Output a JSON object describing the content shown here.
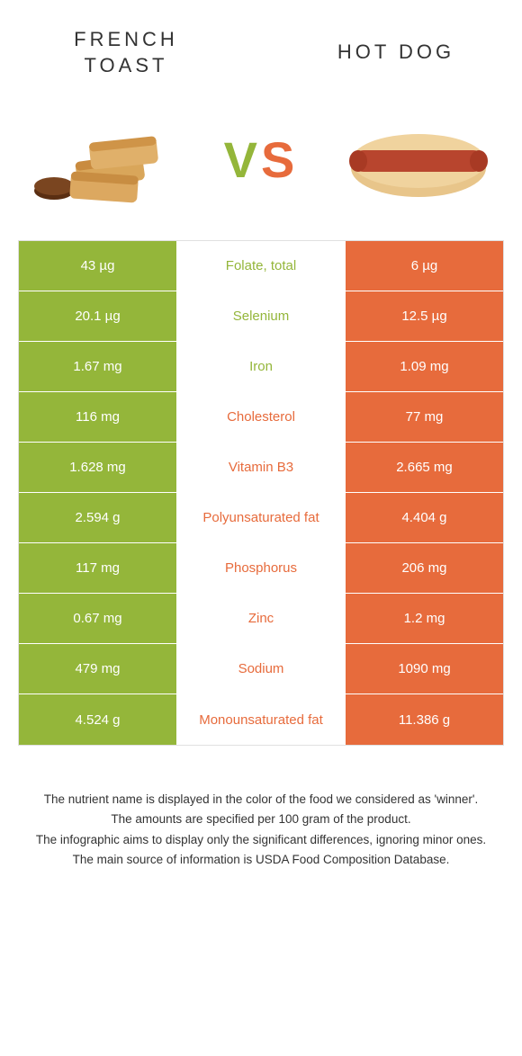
{
  "header": {
    "left_title_line1": "French",
    "left_title_line2": "toast",
    "right_title": "Hot dog",
    "vs_label": "VS"
  },
  "colors": {
    "left": "#94b63a",
    "right": "#e76b3c",
    "bg": "#ffffff",
    "text": "#333333",
    "border": "#e0e0e0"
  },
  "table": {
    "rows": [
      {
        "left": "43 µg",
        "label": "Folate, total",
        "right": "6 µg",
        "winner": "left"
      },
      {
        "left": "20.1 µg",
        "label": "Selenium",
        "right": "12.5 µg",
        "winner": "left"
      },
      {
        "left": "1.67 mg",
        "label": "Iron",
        "right": "1.09 mg",
        "winner": "left"
      },
      {
        "left": "116 mg",
        "label": "Cholesterol",
        "right": "77 mg",
        "winner": "right"
      },
      {
        "left": "1.628 mg",
        "label": "Vitamin B3",
        "right": "2.665 mg",
        "winner": "right"
      },
      {
        "left": "2.594 g",
        "label": "Polyunsaturated fat",
        "right": "4.404 g",
        "winner": "right"
      },
      {
        "left": "117 mg",
        "label": "Phosphorus",
        "right": "206 mg",
        "winner": "right"
      },
      {
        "left": "0.67 mg",
        "label": "Zinc",
        "right": "1.2 mg",
        "winner": "right"
      },
      {
        "left": "479 mg",
        "label": "Sodium",
        "right": "1090 mg",
        "winner": "right"
      },
      {
        "left": "4.524 g",
        "label": "Monounsaturated fat",
        "right": "11.386 g",
        "winner": "right"
      }
    ]
  },
  "footer": {
    "line1": "The nutrient name is displayed in the color of the food we considered as 'winner'.",
    "line2": "The amounts are specified per 100 gram of the product.",
    "line3": "The infographic aims to display only the significant differences, ignoring minor ones.",
    "line4": "The main source of information is USDA Food Composition Database."
  }
}
